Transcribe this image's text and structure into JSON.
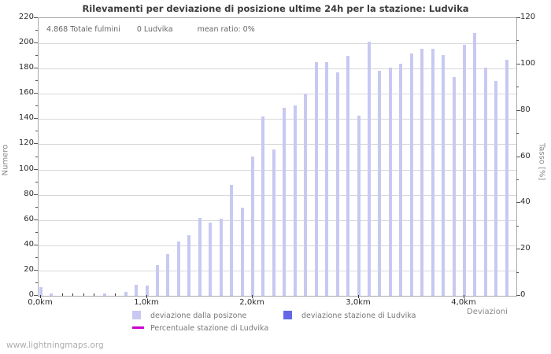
{
  "page": {
    "watermark": "www.lightningmaps.org"
  },
  "chart": {
    "title": "Rilevamenti per deviazione di posizione ultime 24h per la stazione: Ludvika",
    "stats": {
      "total": "4.868 Totale fulmini",
      "station": "0 Ludvika",
      "ratio": "mean ratio: 0%"
    },
    "legend": [
      {
        "label": "deviazione dalla posizone",
        "swatch_color": "#c8c9f2",
        "type": "square"
      },
      {
        "label": "deviazione stazione di Ludvika",
        "swatch_color": "#6666e8",
        "type": "square"
      },
      {
        "label": "Percentuale stazione di Ludvika",
        "swatch_color": "#cc00cc",
        "type": "line"
      }
    ],
    "colors": {
      "bar_deviation": "#c8c9f2",
      "bar_station": "#6666e8",
      "percent_line": "#cc00cc",
      "grid": "#d8d8d8",
      "plot_border": "#a9a9a9"
    }
  },
  "chart_data": {
    "type": "bar",
    "title": "Rilevamenti per deviazione di posizione ultime 24h per la stazione: Ludvika",
    "xlabel": "Deviazioni",
    "ylabel_left": "Numero",
    "ylabel_right": "Tasso [%]",
    "grid": "horizontal",
    "legend_position": "bottom",
    "axes": {
      "left": {
        "min": 0,
        "max": 220,
        "major_step": 20,
        "minor_step": 10,
        "ticks": [
          0,
          20,
          40,
          60,
          80,
          100,
          120,
          140,
          160,
          180,
          200,
          220
        ]
      },
      "right": {
        "min": 0,
        "max": 120,
        "major_step": 20,
        "minor_step": 10,
        "ticks": [
          0,
          20,
          40,
          60,
          80,
          100,
          120
        ]
      },
      "x": {
        "min_km": 0.0,
        "max_km": 4.48,
        "minor_step_km": 0.1,
        "major_tick_km": [
          0,
          1,
          2,
          3,
          4
        ],
        "major_tick_labels": [
          "0,0km",
          "1,0km",
          "2,0km",
          "3,0km",
          "4,0km"
        ]
      }
    },
    "x_km": [
      0.0,
      0.1,
      0.2,
      0.3,
      0.4,
      0.5,
      0.6,
      0.7,
      0.8,
      0.9,
      1.0,
      1.1,
      1.2,
      1.3,
      1.4,
      1.5,
      1.6,
      1.7,
      1.8,
      1.9,
      2.0,
      2.1,
      2.2,
      2.3,
      2.4,
      2.5,
      2.6,
      2.7,
      2.8,
      2.9,
      3.0,
      3.1,
      3.2,
      3.3,
      3.4,
      3.5,
      3.6,
      3.7,
      3.8,
      3.9,
      4.0,
      4.1,
      4.2,
      4.3,
      4.4
    ],
    "series": [
      {
        "name": "deviazione dalla posizone",
        "axis": "left",
        "color": "#c8c9f2",
        "values": [
          7,
          2,
          0,
          0,
          0,
          0,
          2,
          0,
          3,
          9,
          8,
          24,
          33,
          43,
          48,
          62,
          58,
          61,
          88,
          70,
          110,
          142,
          116,
          149,
          151,
          160,
          185,
          185,
          177,
          190,
          143,
          201,
          178,
          181,
          184,
          192,
          196,
          196,
          191,
          173,
          199,
          208,
          181,
          170,
          187
        ]
      },
      {
        "name": "deviazione stazione di Ludvika",
        "axis": "left",
        "color": "#6666e8",
        "values": [
          0,
          0,
          0,
          0,
          0,
          0,
          0,
          0,
          0,
          0,
          0,
          0,
          0,
          0,
          0,
          0,
          0,
          0,
          0,
          0,
          0,
          0,
          0,
          0,
          0,
          0,
          0,
          0,
          0,
          0,
          0,
          0,
          0,
          0,
          0,
          0,
          0,
          0,
          0,
          0,
          0,
          0,
          0,
          0,
          0
        ]
      }
    ],
    "line_series": [
      {
        "name": "Percentuale stazione di Ludvika",
        "axis": "right",
        "color": "#cc00cc",
        "values": [
          0,
          0,
          0,
          0,
          0,
          0,
          0,
          0,
          0,
          0,
          0,
          0,
          0,
          0,
          0,
          0,
          0,
          0,
          0,
          0,
          0,
          0,
          0,
          0,
          0,
          0,
          0,
          0,
          0,
          0,
          0,
          0,
          0,
          0,
          0,
          0,
          0,
          0,
          0,
          0,
          0,
          0,
          0,
          0,
          0
        ]
      }
    ]
  }
}
